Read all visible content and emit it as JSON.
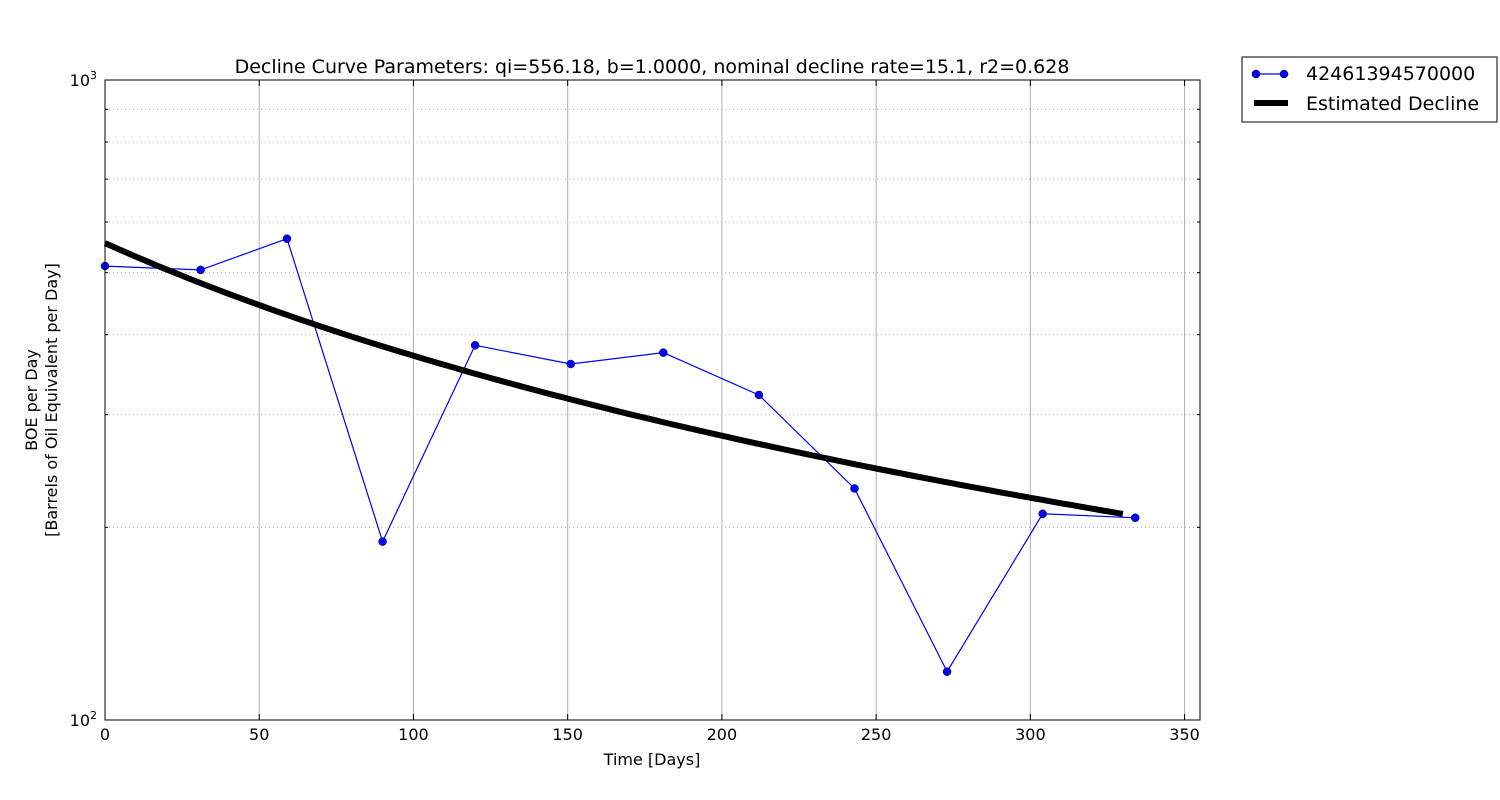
{
  "chart_data": {
    "type": "line",
    "title": "Decline Curve Parameters: qi=556.18, b=1.0000, nominal decline rate=15.1, r2=0.628",
    "xlabel": "Time [Days]",
    "ylabel_line1": "BOE per Day",
    "ylabel_line2": "[Barrels of Oil Equivalent per Day]",
    "xlim": [
      0,
      355
    ],
    "ylim": [
      100,
      1000
    ],
    "yscale": "log",
    "x_ticks": [
      0,
      50,
      100,
      150,
      200,
      250,
      300,
      350
    ],
    "x_tick_labels": [
      "0",
      "50",
      "100",
      "150",
      "200",
      "250",
      "300",
      "350"
    ],
    "y_major_ticks": [
      100,
      1000
    ],
    "y_major_tick_labels": [
      {
        "base": "10",
        "exp": "2"
      },
      {
        "base": "10",
        "exp": "3"
      }
    ],
    "y_minor_ticks": [
      200,
      300,
      400,
      500,
      600,
      700,
      800,
      900
    ],
    "grid": true,
    "legend_position": "outside top-right",
    "series": [
      {
        "name": "42461394570000",
        "style": "line-marker",
        "color": "#0000ff",
        "x": [
          0,
          31,
          59,
          90,
          120,
          151,
          181,
          212,
          243,
          273,
          304,
          334
        ],
        "y": [
          512,
          505,
          565,
          190,
          385,
          360,
          375,
          322,
          230,
          119,
          210,
          207
        ]
      },
      {
        "name": "Estimated Decline",
        "style": "thick-line",
        "color": "#000000",
        "qi": 556.18,
        "b": 1.0,
        "di_per_day": 0.005,
        "x": [
          0,
          330
        ]
      }
    ]
  }
}
